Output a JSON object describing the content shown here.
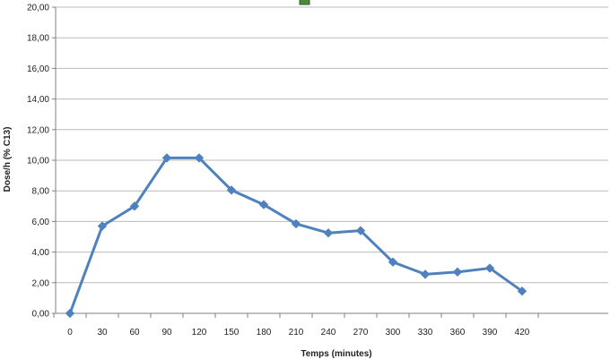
{
  "chart_data": {
    "type": "line",
    "title": "",
    "xlabel": "Temps (minutes)",
    "ylabel": "Dose/h (% C13)",
    "x": [
      0,
      30,
      60,
      90,
      120,
      150,
      180,
      210,
      240,
      270,
      300,
      330,
      360,
      390,
      420
    ],
    "y_tick_labels": [
      "0,00",
      "2,00",
      "4,00",
      "6,00",
      "8,00",
      "10,00",
      "12,00",
      "14,00",
      "16,00",
      "18,00",
      "20,00"
    ],
    "ylim": [
      0,
      20
    ],
    "y_ticks": [
      0,
      2,
      4,
      6,
      8,
      10,
      12,
      14,
      16,
      18,
      20
    ],
    "grid": true,
    "series": [
      {
        "values": [
          0.0,
          5.7,
          7.0,
          10.15,
          10.15,
          8.05,
          7.1,
          5.85,
          5.25,
          5.4,
          3.35,
          2.55,
          2.7,
          2.95,
          1.45
        ],
        "color": "#4f81bd",
        "marker": "diamond"
      }
    ],
    "legend": "top-center",
    "legend_swatch_color": "#4e8a3c"
  }
}
